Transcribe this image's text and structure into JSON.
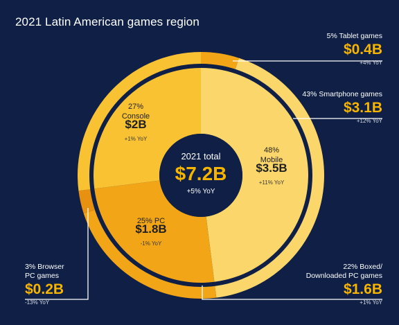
{
  "title": "2021 Latin American games region",
  "colors": {
    "background": "#0f1f45",
    "accent": "#f7b500",
    "mobile": "#fbd66a",
    "console": "#f9c233",
    "pc": "#f2a516",
    "tablet": "#f2a516",
    "browser": "#e8900f"
  },
  "chart_data": {
    "type": "pie",
    "center": {
      "label": "2021 total",
      "value": "$7.2B",
      "yoy": "+5% YoY"
    },
    "inner_ring": [
      {
        "share": 48,
        "label_line1": "48%",
        "label_line2": "Mobile",
        "value": "$3.5B",
        "yoy": "+11% YoY"
      },
      {
        "share": 25,
        "label_line1": "25% PC",
        "label_line2": "",
        "value": "$1.8B",
        "yoy": "-1% YoY"
      },
      {
        "share": 27,
        "label_line1": "27%",
        "label_line2": "Console",
        "value": "$2B",
        "yoy": "+1% YoY"
      }
    ],
    "outer_ring": [
      {
        "share": 5,
        "label_line1": "5% Tablet games",
        "label_line2": "",
        "value": "$0.4B",
        "yoy": "+4% YoY"
      },
      {
        "share": 43,
        "label_line1": "43% Smartphone games",
        "label_line2": "",
        "value": "$3.1B",
        "yoy": "+12% YoY"
      },
      {
        "share": 22,
        "label_line1": "22% Boxed/",
        "label_line2": "Downloaded PC games",
        "value": "$1.6B",
        "yoy": "+1% YoY"
      },
      {
        "share": 3,
        "label_line1": "3% Browser",
        "label_line2": "PC games",
        "value": "$0.2B",
        "yoy": "-13% YoY"
      },
      {
        "share": 27,
        "label_line1": "",
        "label_line2": "",
        "value": "",
        "yoy": ""
      }
    ]
  }
}
